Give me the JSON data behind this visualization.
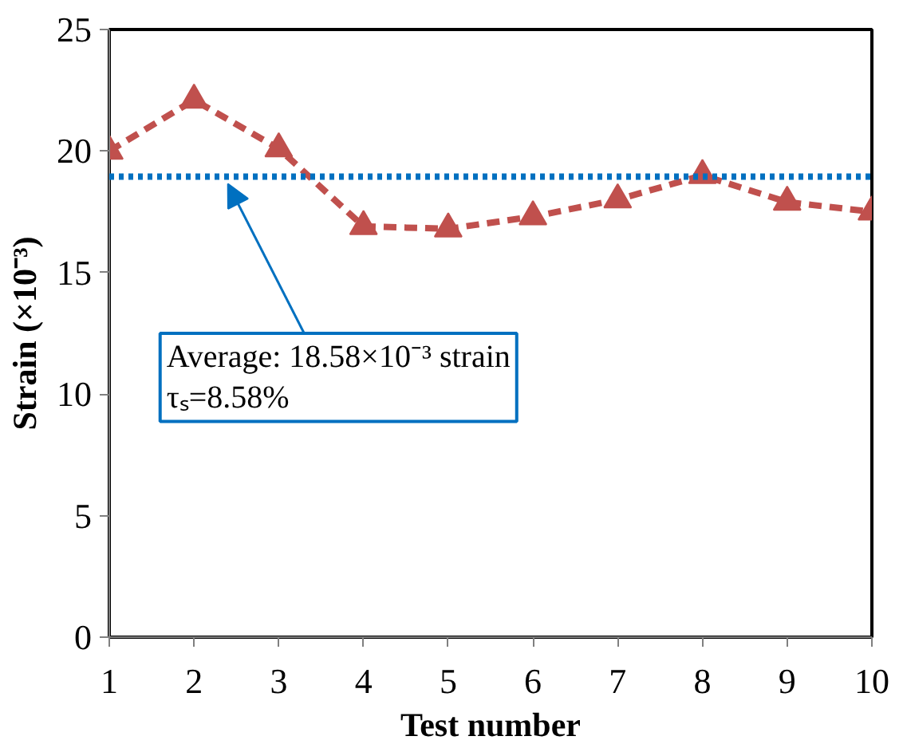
{
  "chart_data": {
    "type": "line",
    "xlabel": "Test number",
    "ylabel": "Strain (×10⁻³)",
    "x": [
      1,
      2,
      3,
      4,
      5,
      6,
      7,
      8,
      9,
      10
    ],
    "series": [
      {
        "color": "#c0504d",
        "values": [
          20.0,
          22.1,
          20.1,
          16.9,
          16.8,
          17.3,
          18.0,
          19.0,
          17.9,
          17.5
        ]
      }
    ],
    "marker": "triangle",
    "line_style": "dashed",
    "grid": false,
    "xlim": [
      1,
      10
    ],
    "xticks": [
      1,
      2,
      3,
      4,
      5,
      6,
      7,
      8,
      9,
      10
    ],
    "ylim": [
      0,
      25
    ],
    "yticks": [
      0,
      5,
      10,
      15,
      20,
      25
    ],
    "ref_lines": [
      {
        "axis": "y",
        "value": 18.95,
        "label": null,
        "color": "#0070c0",
        "line_style": "dotted"
      }
    ],
    "annotations": [
      {
        "text": "Average: 18.58×10⁻³ strain\nτₛ=8.58%",
        "x": 2.4,
        "y": 18.95
      }
    ]
  }
}
